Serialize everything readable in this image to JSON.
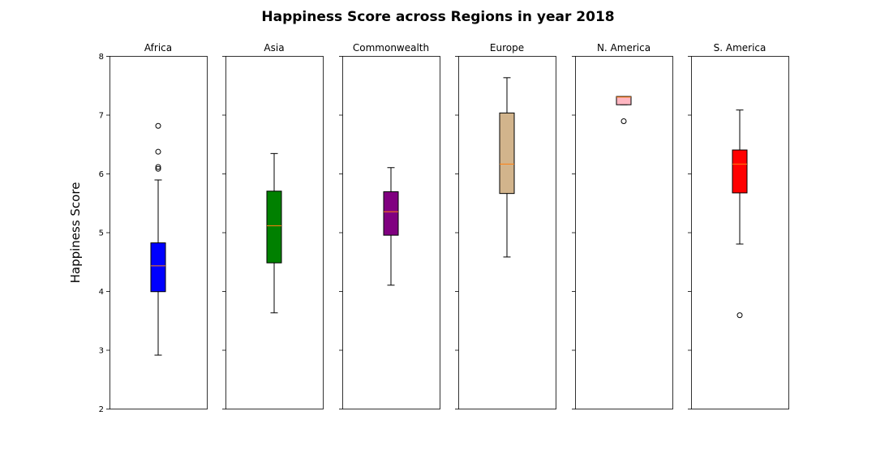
{
  "title": "Happiness Score across Regions in year 2018",
  "ylabel": "Happiness Score",
  "chart_data": {
    "type": "box",
    "title": "Happiness Score across Regions in year 2018",
    "ylabel": "Happiness Score",
    "ylim": [
      2,
      8
    ],
    "yticks": [
      "2",
      "3",
      "4",
      "5",
      "6",
      "7",
      "8"
    ],
    "grid": false,
    "series": [
      {
        "name": "Africa",
        "color": "#0000ff",
        "median_color": "#ff7f0e",
        "whisker_low": 2.91,
        "q1": 3.99,
        "median": 4.43,
        "q3": 4.82,
        "whisker_high": 5.89,
        "outliers": [
          6.81,
          6.37,
          6.11,
          6.08
        ]
      },
      {
        "name": "Asia",
        "color": "#008000",
        "median_color": "#ff7f0e",
        "whisker_low": 3.63,
        "q1": 4.48,
        "median": 5.11,
        "q3": 5.7,
        "whisker_high": 6.34,
        "outliers": []
      },
      {
        "name": "Commonwealth",
        "color": "#800080",
        "median_color": "#ff7f0e",
        "whisker_low": 4.1,
        "q1": 4.95,
        "median": 5.35,
        "q3": 5.69,
        "whisker_high": 6.1,
        "outliers": []
      },
      {
        "name": "Europe",
        "color": "#d2b48c",
        "median_color": "#ff7f0e",
        "whisker_low": 4.58,
        "q1": 5.66,
        "median": 6.16,
        "q3": 7.03,
        "whisker_high": 7.63,
        "outliers": []
      },
      {
        "name": "N. America",
        "color": "#ffb6c1",
        "median_color": "#ff7f0e",
        "whisker_low": 7.17,
        "q1": 7.17,
        "median": 7.3,
        "q3": 7.31,
        "whisker_high": 7.31,
        "outliers": [
          6.89
        ]
      },
      {
        "name": "S. America",
        "color": "#ff0000",
        "median_color": "#ff7f0e",
        "whisker_low": 4.8,
        "q1": 5.67,
        "median": 6.16,
        "q3": 6.4,
        "whisker_high": 7.08,
        "outliers": [
          3.59
        ]
      }
    ]
  }
}
